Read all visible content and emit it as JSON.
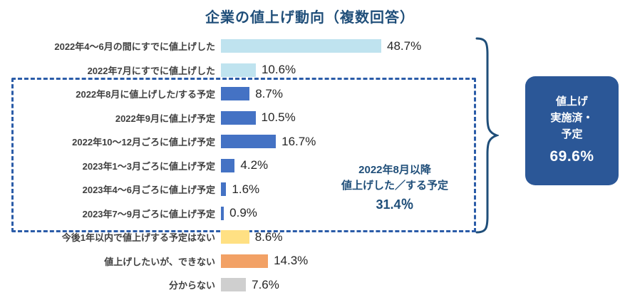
{
  "title": "企業の値上げ動向（複数回答）",
  "chart_data": {
    "type": "bar",
    "orientation": "horizontal",
    "title": "企業の値上げ動向（複数回答）",
    "categories": [
      "2022年4～6月の間にすでに値上げした",
      "2022年7月にすでに値上げした",
      "2022年8月に値上げした/する予定",
      "2022年9月に値上げ予定",
      "2022年10～12月ごろに値上げ予定",
      "2023年1～3月ごろに値上げ予定",
      "2023年4～6月ごろに値上げ予定",
      "2023年7～9月ごろに値上げ予定",
      "今後1年以内で値上げする予定はない",
      "値上げしたいが、できない",
      "分からない"
    ],
    "values": [
      48.7,
      10.6,
      8.7,
      10.5,
      16.7,
      4.2,
      1.6,
      0.9,
      8.6,
      14.3,
      7.6
    ],
    "value_labels": [
      "48.7%",
      "10.6%",
      "8.7%",
      "10.5%",
      "16.7%",
      "4.2%",
      "1.6%",
      "0.9%",
      "8.6%",
      "14.3%",
      "7.6%"
    ],
    "bar_colors": [
      "#BFE3EF",
      "#BFE3EF",
      "#4472C4",
      "#4472C4",
      "#4472C4",
      "#4472C4",
      "#4472C4",
      "#4472C4",
      "#FFE083",
      "#F2A165",
      "#CFCFCF"
    ],
    "xlim": [
      0,
      50
    ],
    "xlabel": "",
    "ylabel": "",
    "grid": false,
    "legend": false
  },
  "annotation": {
    "line1": "2022年8月以降",
    "line2": "値上げした／する予定",
    "value": "31.4％"
  },
  "summary": {
    "line1": "値上げ",
    "line2": "実施済・",
    "line3": "予定",
    "value": "69.6%"
  },
  "colors": {
    "title_text": "#1F4E79",
    "dashed_border": "#2B5CA8",
    "annotation_text": "#1F4E79",
    "summary_background": "#2B5797",
    "summary_text": "#FFFFFF",
    "brace_stroke": "#1F4E79"
  }
}
